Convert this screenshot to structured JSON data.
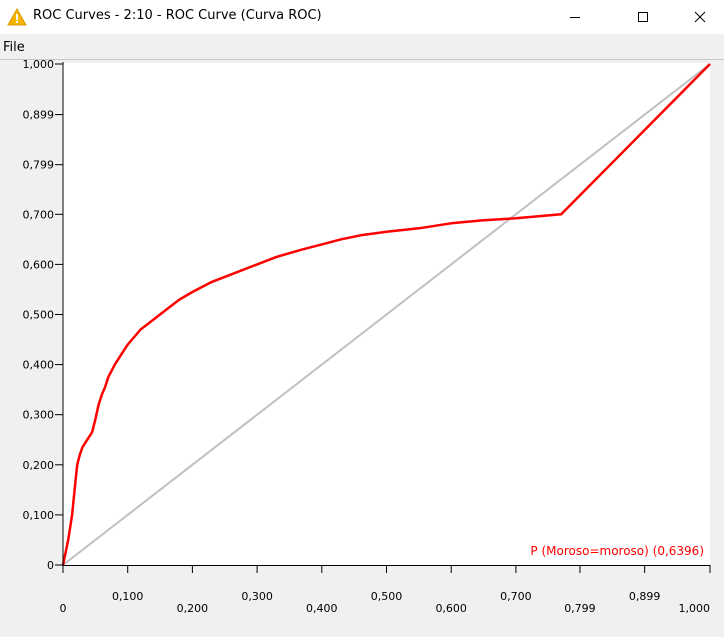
{
  "window": {
    "title": "ROC Curves - 2:10 - ROC Curve (Curva ROC)",
    "icon": "warning-triangle-icon"
  },
  "menu": {
    "file_label": "File"
  },
  "chart_data": {
    "type": "line",
    "title": "",
    "xlabel": "",
    "ylabel": "",
    "xlim": [
      0,
      1
    ],
    "ylim": [
      0,
      1
    ],
    "grid": false,
    "x_ticks": [
      {
        "value": 0,
        "label": "0"
      },
      {
        "value": 0.1,
        "label": "0,100"
      },
      {
        "value": 0.2,
        "label": "0,200"
      },
      {
        "value": 0.3,
        "label": "0,300"
      },
      {
        "value": 0.4,
        "label": "0,400"
      },
      {
        "value": 0.5,
        "label": "0,500"
      },
      {
        "value": 0.6,
        "label": "0,600"
      },
      {
        "value": 0.7,
        "label": "0,700"
      },
      {
        "value": 0.799,
        "label": "0,799"
      },
      {
        "value": 0.899,
        "label": "0,899"
      },
      {
        "value": 1.0,
        "label": "1,000"
      }
    ],
    "y_ticks": [
      {
        "value": 0,
        "label": "0"
      },
      {
        "value": 0.1,
        "label": "0,100"
      },
      {
        "value": 0.2,
        "label": "0,200"
      },
      {
        "value": 0.3,
        "label": "0,300"
      },
      {
        "value": 0.4,
        "label": "0,400"
      },
      {
        "value": 0.5,
        "label": "0,500"
      },
      {
        "value": 0.6,
        "label": "0,600"
      },
      {
        "value": 0.7,
        "label": "0,700"
      },
      {
        "value": 0.799,
        "label": "0,799"
      },
      {
        "value": 0.899,
        "label": "0,899"
      },
      {
        "value": 1.0,
        "label": "1,000"
      }
    ],
    "diagonal": {
      "color": "#c0c0c0",
      "x": [
        0,
        1
      ],
      "y": [
        0,
        1
      ]
    },
    "series": [
      {
        "name": "P (Moroso=moroso) (0,6396)",
        "color": "#ff0000",
        "x": [
          0,
          0.008,
          0.014,
          0.018,
          0.022,
          0.026,
          0.03,
          0.035,
          0.04,
          0.045,
          0.05,
          0.055,
          0.06,
          0.065,
          0.07,
          0.08,
          0.09,
          0.1,
          0.11,
          0.12,
          0.13,
          0.145,
          0.16,
          0.18,
          0.2,
          0.23,
          0.26,
          0.3,
          0.33,
          0.37,
          0.4,
          0.43,
          0.46,
          0.5,
          0.55,
          0.6,
          0.65,
          0.7,
          0.77,
          1.0
        ],
        "y": [
          0,
          0.05,
          0.1,
          0.15,
          0.2,
          0.22,
          0.235,
          0.245,
          0.255,
          0.265,
          0.29,
          0.32,
          0.34,
          0.355,
          0.375,
          0.4,
          0.42,
          0.44,
          0.455,
          0.47,
          0.48,
          0.495,
          0.51,
          0.53,
          0.545,
          0.565,
          0.58,
          0.6,
          0.615,
          0.63,
          0.64,
          0.65,
          0.658,
          0.665,
          0.672,
          0.682,
          0.688,
          0.692,
          0.7,
          1.0
        ]
      }
    ],
    "legend_position": "bottom-right"
  }
}
